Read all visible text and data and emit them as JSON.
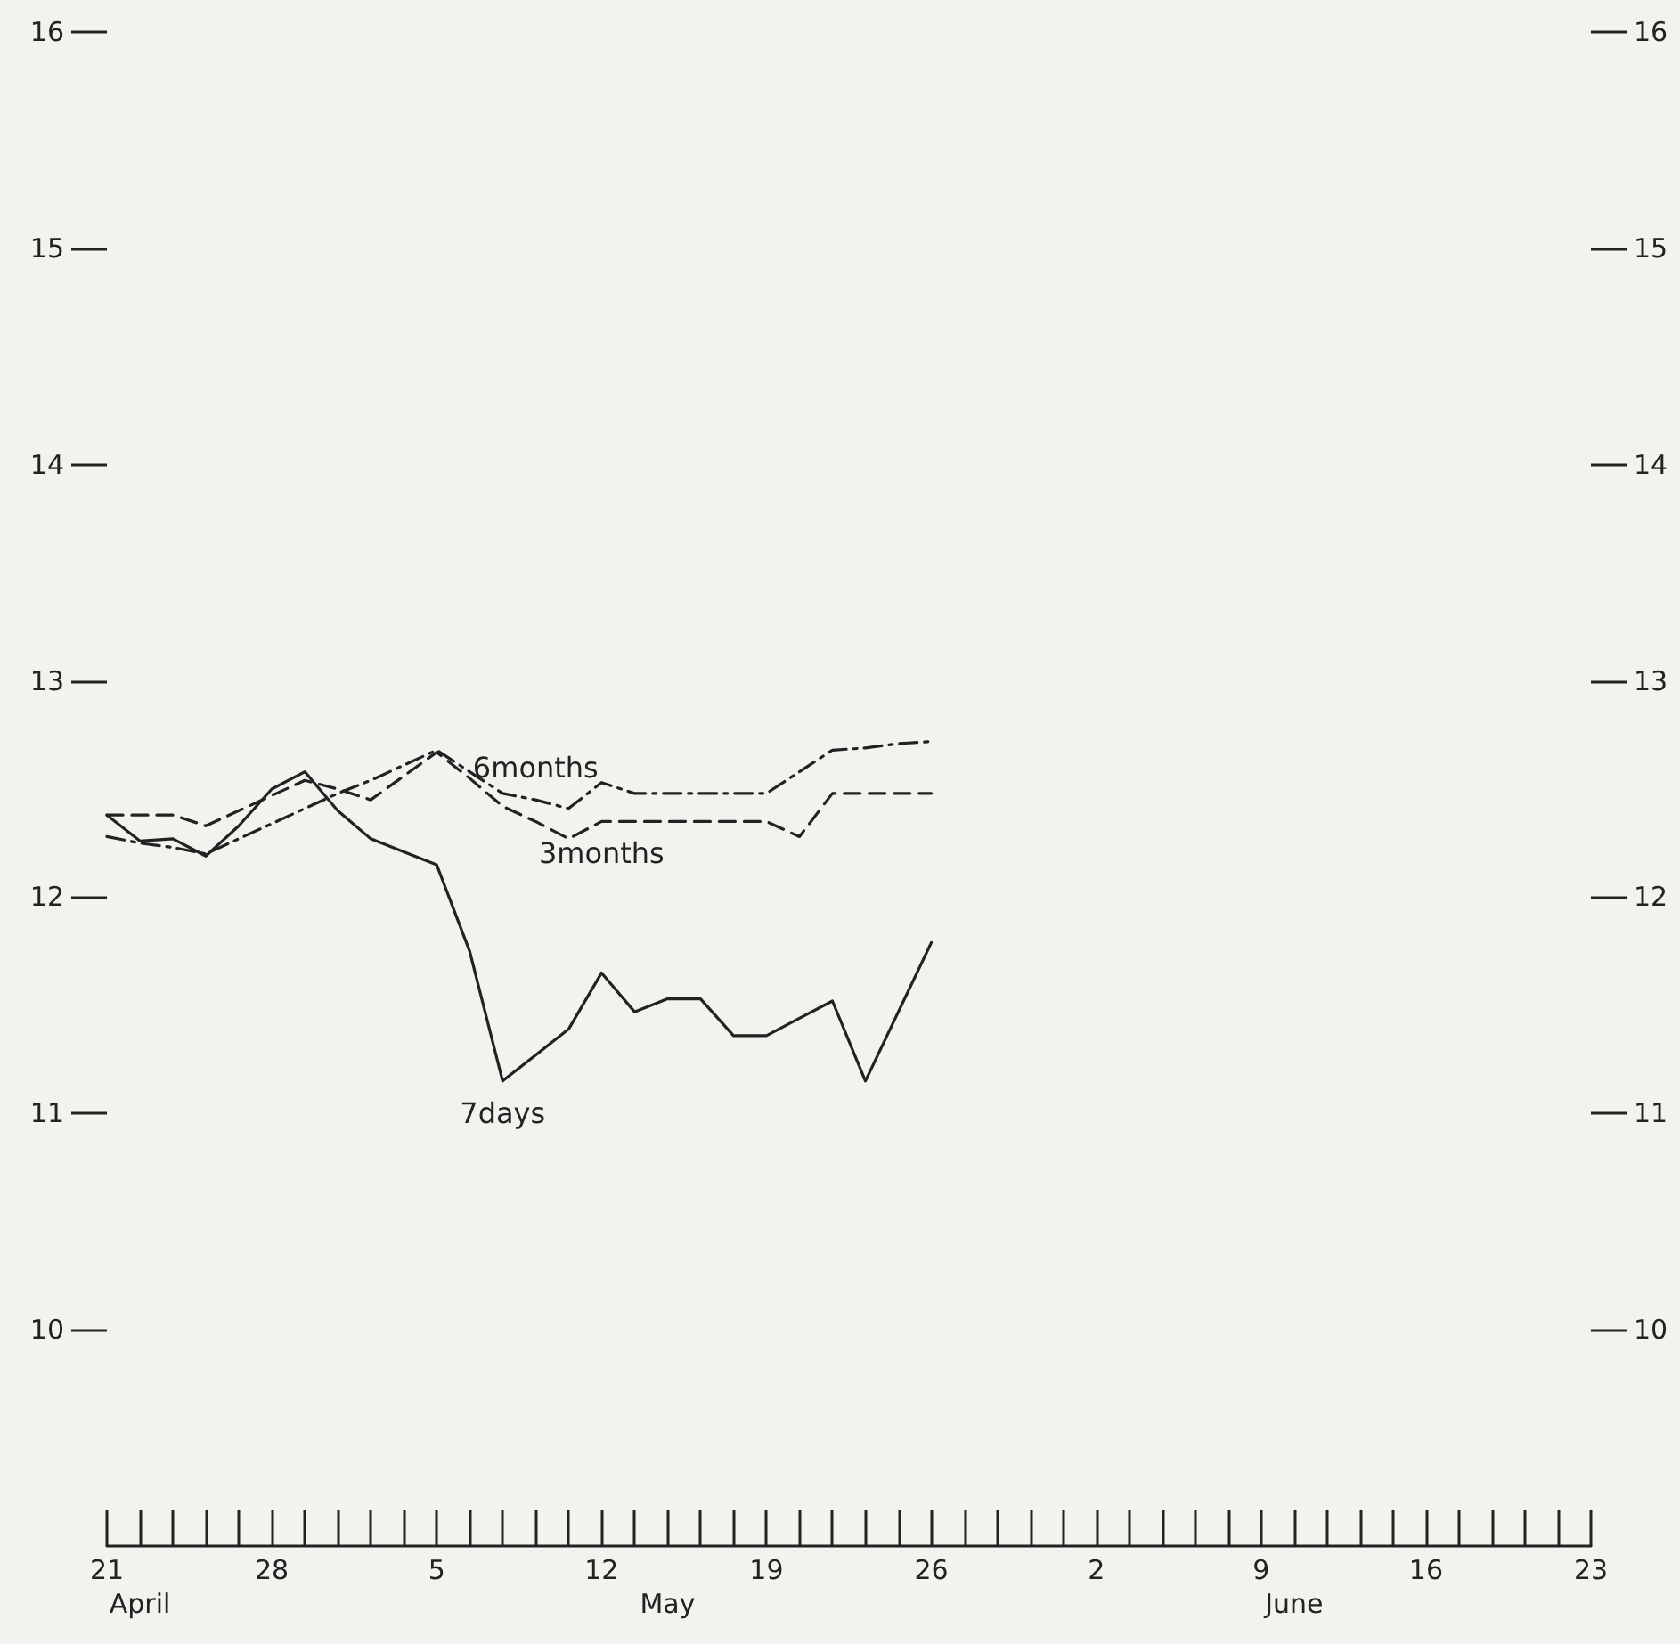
{
  "chart_data": {
    "type": "line",
    "categories": [
      "21",
      null,
      null,
      null,
      null,
      "28",
      null,
      null,
      null,
      null,
      "5",
      null,
      null,
      null,
      null,
      "12",
      null,
      null,
      null,
      null,
      "19",
      null,
      null,
      null,
      null,
      "26",
      null,
      null,
      null,
      null,
      "2",
      null,
      null,
      null,
      null,
      "9",
      null,
      null,
      null,
      null,
      "16",
      null,
      null,
      null,
      null,
      "23"
    ],
    "series": [
      {
        "name": "6months",
        "color": "#222222",
        "line_style": "dotted",
        "values": [
          12.28,
          12.25,
          12.23,
          12.2,
          12.27,
          12.34,
          12.41,
          12.48,
          12.54,
          12.61,
          12.68,
          12.58,
          12.48,
          12.45,
          12.41,
          12.53,
          12.48,
          12.48,
          12.48,
          12.48,
          12.48,
          12.58,
          12.68,
          12.69,
          12.71,
          12.72,
          null,
          null,
          null,
          null,
          null,
          null,
          null,
          null,
          null,
          null,
          null,
          null,
          null,
          null,
          null,
          null,
          null,
          null,
          null,
          null
        ]
      },
      {
        "name": "3months",
        "color": "#222222",
        "line_style": "dashed",
        "values": [
          12.38,
          12.38,
          12.38,
          12.33,
          12.4,
          12.47,
          12.54,
          12.5,
          12.45,
          12.56,
          12.67,
          12.55,
          12.42,
          12.35,
          12.27,
          12.35,
          12.35,
          12.35,
          12.35,
          12.35,
          12.35,
          12.28,
          12.48,
          12.48,
          12.48,
          12.48,
          null,
          null,
          null,
          null,
          null,
          null,
          null,
          null,
          null,
          null,
          null,
          null,
          null,
          null,
          null,
          null,
          null,
          null,
          null,
          null
        ]
      },
      {
        "name": "7days",
        "color": "#222222",
        "line_style": "solid",
        "values": [
          12.38,
          12.26,
          12.27,
          12.19,
          12.33,
          12.5,
          12.58,
          12.4,
          12.27,
          12.21,
          12.15,
          11.75,
          11.15,
          11.27,
          11.39,
          11.65,
          11.47,
          11.53,
          11.53,
          11.36,
          11.36,
          11.44,
          11.52,
          11.15,
          11.47,
          11.79,
          null,
          null,
          null,
          null,
          null,
          null,
          null,
          null,
          null,
          null,
          null,
          null,
          null,
          null,
          null,
          null,
          null,
          null,
          null,
          null
        ]
      }
    ],
    "annotations": [
      "April",
      "May",
      "June"
    ],
    "ylim": [
      9,
      16
    ],
    "yticks": [
      10,
      11,
      12,
      13,
      14,
      15,
      16
    ],
    "y2lim": [
      9,
      16
    ],
    "y2ticks": [
      10,
      11,
      12,
      13,
      14,
      15,
      16
    ],
    "grid": false,
    "legend": false,
    "marker": "none"
  }
}
